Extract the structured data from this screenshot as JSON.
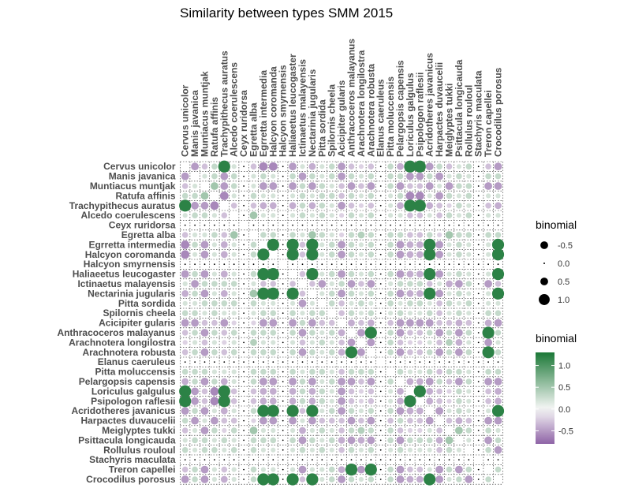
{
  "chart_data": {
    "type": "heatmap",
    "title": "Similarity between types SMM 2015",
    "variables": [
      "Cervus unicolor",
      "Manis javanica",
      "Muntiacus muntjak",
      "Ratufa affinis",
      "Trachypithecus auratus",
      "Alcedo coerulescens",
      "Ceyx ruridorsa",
      "Egretta alba",
      "Egrretta intermedia",
      "Halcyon coromanda",
      "Halcyon smyrnensis",
      "Haliaeetus leucogaster",
      "Ictinaetus malayensis",
      "Nectarinia jugularis",
      "Pitta sordida",
      "Spilornis cheela",
      "Acicipiter gularis",
      "Anthracoceros malayanus",
      "Arachnotera longilostra",
      "Arachnotera robusta",
      "Elanus caeruleus",
      "Pitta moluccensis",
      "Pelargopsis capensis",
      "Loriculus galgulus",
      "Psipologon raflesii",
      "Acridotheres javanicus",
      "Harpactes duvaucelii",
      "Meiglyptes tukki",
      "Psittacula longicauda",
      "Rollulus rouloul",
      "Stachyris maculata",
      "Treron capellei",
      "Crocodilus porosus"
    ],
    "matrix_note": "",
    "matrix": [
      [
        1,
        -0.5,
        -0.3,
        0.3,
        1.2,
        0.2,
        0,
        -0.3,
        -0.6,
        -0.6,
        0,
        -0.5,
        0.2,
        -0.4,
        0.2,
        0.3,
        -0.5,
        -0.3,
        -0.2,
        -0.3,
        0,
        0.3,
        -0.4,
        1.2,
        1.2,
        -0.5,
        0.3,
        -0.3,
        0.2,
        0.3,
        0,
        -0.3,
        -0.5
      ],
      [
        -0.5,
        1,
        0.2,
        0.3,
        -0.5,
        0.3,
        0,
        0.2,
        0.3,
        0.2,
        0,
        0.3,
        -0.5,
        0.3,
        0.2,
        0.3,
        -0.5,
        0.3,
        0.2,
        0.3,
        0,
        0.3,
        0.3,
        -0.5,
        -0.5,
        0.3,
        -0.5,
        0.2,
        0.3,
        0.2,
        0,
        0.3,
        0.3
      ],
      [
        -0.3,
        0.2,
        1,
        0.5,
        -0.5,
        0.3,
        0,
        0.2,
        -0.5,
        -0.5,
        0,
        -0.5,
        0.3,
        -0.5,
        0.3,
        0.2,
        -0.3,
        -0.5,
        -0.3,
        -0.5,
        0,
        0.3,
        -0.5,
        -0.3,
        -0.3,
        -0.5,
        0.2,
        -0.5,
        0.3,
        0.3,
        0,
        -0.5,
        -0.5
      ],
      [
        0.3,
        0.3,
        0.5,
        1,
        -0.6,
        0.2,
        0,
        0.3,
        0.2,
        0.2,
        0,
        0.2,
        0.3,
        0.2,
        0.3,
        0.3,
        -0.3,
        0.3,
        0.2,
        0.3,
        0,
        0.2,
        0.3,
        -0.6,
        -0.6,
        0.2,
        -0.5,
        0.3,
        0.2,
        0.3,
        0,
        0.2,
        0.2
      ],
      [
        1.2,
        -0.5,
        -0.5,
        -0.6,
        1,
        -0.3,
        0,
        -0.3,
        -0.4,
        -0.4,
        0,
        -0.4,
        0.3,
        -0.4,
        0.3,
        0.2,
        -0.5,
        -0.3,
        -0.2,
        -0.3,
        0,
        0.2,
        -0.4,
        1.2,
        1.2,
        -0.4,
        -0.3,
        -0.2,
        0.3,
        0.2,
        0,
        -0.3,
        -0.4
      ],
      [
        0.2,
        0.3,
        0.3,
        0.2,
        -0.3,
        1,
        0,
        0.5,
        0.2,
        0.2,
        0,
        0.2,
        0.3,
        0.2,
        0.3,
        0.2,
        -0.2,
        0.3,
        0.2,
        0.3,
        0,
        0.2,
        0.2,
        -0.3,
        -0.3,
        0.2,
        -0.3,
        0.3,
        0.2,
        0.3,
        0,
        0.2,
        0.2
      ],
      [
        0,
        0,
        0,
        0,
        0,
        0,
        1,
        0,
        0,
        0,
        0,
        0,
        0,
        0,
        0,
        0,
        0,
        0,
        0,
        0,
        0,
        0,
        0,
        0,
        0,
        0,
        0,
        0,
        0,
        0,
        0,
        0,
        0
      ],
      [
        -0.3,
        0.2,
        0.2,
        0.3,
        -0.3,
        0.5,
        0,
        1,
        0.3,
        0.3,
        0,
        0.3,
        0.2,
        0.5,
        0.3,
        0.2,
        -0.2,
        0.3,
        0.4,
        0.3,
        0,
        0.3,
        0.3,
        -0.3,
        -0.3,
        0.3,
        -0.2,
        0.5,
        0.3,
        0.3,
        0,
        0.3,
        0.3
      ],
      [
        -0.6,
        0.3,
        -0.5,
        0.2,
        -0.4,
        0.2,
        0,
        0.3,
        1,
        1.2,
        0,
        1.2,
        -0.3,
        1.2,
        0.2,
        0.3,
        -0.5,
        0.3,
        0.2,
        0.3,
        0,
        0.3,
        -0.5,
        -0.4,
        -0.4,
        1.2,
        -0.5,
        0.2,
        0.3,
        0.2,
        0,
        0.2,
        1.2
      ],
      [
        -0.6,
        0.2,
        -0.5,
        0.2,
        -0.4,
        0.2,
        0,
        0.3,
        1.2,
        1,
        0,
        1.2,
        -0.3,
        1.2,
        0.2,
        0.3,
        -0.5,
        0.3,
        0.2,
        0.3,
        0,
        0.3,
        -0.5,
        -0.4,
        -0.4,
        1.2,
        -0.5,
        0.2,
        0.3,
        0.2,
        0,
        0.2,
        1.2
      ],
      [
        0,
        0,
        0,
        0,
        0,
        0,
        0,
        0,
        0,
        0,
        1,
        0,
        0,
        0,
        0,
        0,
        0,
        0,
        0,
        0,
        0,
        0,
        0,
        0,
        0,
        0,
        0,
        0,
        0,
        0,
        0,
        0,
        0
      ],
      [
        -0.5,
        0.3,
        -0.5,
        0.2,
        -0.4,
        0.2,
        0,
        0.3,
        1.2,
        1.2,
        0,
        1,
        -0.3,
        1.2,
        0.2,
        0.3,
        -0.5,
        0.3,
        0.2,
        0.3,
        0,
        0.3,
        -0.5,
        -0.4,
        -0.4,
        1.2,
        -0.5,
        0.2,
        0.3,
        0.2,
        0,
        0.2,
        1.2
      ],
      [
        0.2,
        -0.5,
        0.3,
        0.3,
        0.3,
        0.3,
        0,
        0.2,
        -0.3,
        -0.3,
        0,
        -0.3,
        1,
        -0.3,
        -0.5,
        0.2,
        0.3,
        -0.5,
        -0.3,
        -0.5,
        0,
        0.2,
        0.3,
        0.3,
        0.3,
        -0.3,
        0.2,
        -0.4,
        -0.5,
        0.3,
        0,
        -0.5,
        -0.3
      ],
      [
        -0.4,
        0.3,
        -0.5,
        0.2,
        -0.4,
        0.2,
        0,
        0.5,
        1.2,
        1.2,
        0,
        1.2,
        -0.3,
        1,
        0.2,
        0.3,
        -0.5,
        0.3,
        0.2,
        0.3,
        0,
        0.3,
        -0.5,
        -0.4,
        -0.4,
        1.2,
        -0.5,
        0.2,
        0.3,
        0.2,
        0,
        0.2,
        1.2
      ],
      [
        0.2,
        0.2,
        0.3,
        0.3,
        0.3,
        0.3,
        0,
        0.3,
        0.2,
        0.2,
        0,
        0.2,
        -0.5,
        0.2,
        1,
        0.3,
        -0.3,
        0.2,
        0.3,
        0.2,
        0,
        0.3,
        0.2,
        0.3,
        0.3,
        0.2,
        -0.3,
        0.3,
        0.2,
        0.3,
        0,
        0.2,
        0.2
      ],
      [
        0.3,
        0.3,
        0.2,
        0.3,
        0.2,
        0.2,
        0,
        0.2,
        0.3,
        0.3,
        0,
        0.3,
        0.2,
        0.3,
        0.3,
        1,
        -0.3,
        0.3,
        0.2,
        0.3,
        0,
        0.2,
        0.3,
        0.2,
        0.2,
        0.3,
        -0.3,
        0.2,
        0.3,
        0.2,
        0,
        0.3,
        0.3
      ],
      [
        -0.5,
        -0.5,
        -0.3,
        -0.3,
        -0.5,
        -0.2,
        0,
        -0.2,
        -0.5,
        -0.5,
        0,
        -0.5,
        0.3,
        -0.5,
        -0.3,
        -0.3,
        1,
        -0.4,
        -0.3,
        -0.4,
        0,
        -0.3,
        -0.5,
        -0.5,
        -0.5,
        -0.5,
        -0.3,
        -0.3,
        -0.4,
        -0.3,
        0,
        -0.4,
        -0.5
      ],
      [
        -0.3,
        0.3,
        -0.5,
        0.3,
        -0.3,
        0.3,
        0,
        0.3,
        0.3,
        0.3,
        0,
        0.3,
        -0.5,
        0.3,
        0.2,
        0.3,
        -0.4,
        1,
        -0.5,
        1.2,
        0,
        0.3,
        -0.5,
        -0.3,
        -0.3,
        0.3,
        -0.5,
        0.3,
        -0.5,
        0.3,
        0,
        1.2,
        0.3
      ],
      [
        -0.2,
        0.2,
        -0.3,
        0.2,
        -0.2,
        0.2,
        0,
        0.4,
        0.2,
        0.2,
        0,
        0.2,
        -0.3,
        0.2,
        0.3,
        0.2,
        -0.3,
        -0.5,
        1,
        -0.5,
        0,
        0.3,
        -0.3,
        -0.2,
        -0.2,
        0.2,
        -0.3,
        0.4,
        -0.4,
        0.2,
        0,
        -0.5,
        0.2
      ],
      [
        -0.3,
        0.3,
        -0.5,
        0.3,
        -0.3,
        0.3,
        0,
        0.3,
        0.3,
        0.3,
        0,
        0.3,
        -0.5,
        0.3,
        0.2,
        0.3,
        -0.4,
        1.2,
        -0.5,
        1,
        0,
        0.3,
        -0.5,
        -0.3,
        -0.3,
        0.3,
        -0.5,
        0.3,
        -0.5,
        0.3,
        0,
        1.2,
        0.3
      ],
      [
        0,
        0,
        0,
        0,
        0,
        0,
        0,
        0,
        0,
        0,
        0,
        0,
        0,
        0,
        0,
        0,
        0,
        0,
        0,
        0,
        1,
        0,
        0,
        0,
        0,
        0,
        0,
        0,
        0,
        0,
        0,
        0,
        0
      ],
      [
        0.3,
        0.3,
        0.3,
        0.2,
        0.2,
        0.2,
        0,
        0.3,
        0.3,
        0.3,
        0,
        0.3,
        0.2,
        0.3,
        0.3,
        0.2,
        -0.3,
        0.3,
        0.3,
        0.3,
        0,
        1,
        0.3,
        0.2,
        0.2,
        0.3,
        -0.3,
        0.3,
        0.3,
        0.2,
        0,
        0.3,
        0.3
      ],
      [
        -0.4,
        0.3,
        -0.5,
        0.3,
        -0.4,
        0.2,
        0,
        0.3,
        -0.5,
        -0.5,
        0,
        -0.5,
        0.3,
        -0.5,
        0.2,
        0.3,
        -0.5,
        -0.5,
        -0.3,
        -0.5,
        0,
        0.3,
        1,
        -0.4,
        -0.4,
        -0.5,
        0.3,
        -0.3,
        -0.5,
        0.3,
        0,
        -0.5,
        -0.5
      ],
      [
        1.2,
        -0.5,
        -0.3,
        -0.6,
        1.2,
        -0.3,
        0,
        -0.3,
        -0.4,
        -0.4,
        0,
        -0.4,
        0.3,
        -0.4,
        0.3,
        0.2,
        -0.5,
        -0.3,
        -0.2,
        -0.3,
        0,
        0.2,
        -0.4,
        1,
        1.2,
        -0.4,
        -0.3,
        -0.2,
        0.3,
        0.2,
        0,
        -0.3,
        -0.4
      ],
      [
        1.2,
        -0.5,
        -0.3,
        -0.6,
        1.2,
        -0.3,
        0,
        -0.3,
        -0.4,
        -0.4,
        0,
        -0.4,
        0.3,
        -0.4,
        0.3,
        0.2,
        -0.5,
        -0.3,
        -0.2,
        -0.3,
        0,
        0.2,
        -0.4,
        1.2,
        1,
        -0.4,
        -0.3,
        -0.2,
        0.3,
        0.2,
        0,
        -0.3,
        -0.4
      ],
      [
        -0.5,
        0.3,
        -0.5,
        0.2,
        -0.4,
        0.2,
        0,
        0.3,
        1.2,
        1.2,
        0,
        1.2,
        -0.3,
        1.2,
        0.2,
        0.3,
        -0.5,
        0.3,
        0.2,
        0.3,
        0,
        0.3,
        -0.5,
        -0.4,
        -0.4,
        1,
        -0.5,
        0.2,
        0.3,
        0.2,
        0,
        0.2,
        1.2
      ],
      [
        0.3,
        -0.5,
        0.2,
        -0.5,
        -0.3,
        -0.3,
        0,
        -0.2,
        -0.5,
        -0.5,
        0,
        -0.5,
        0.2,
        -0.5,
        -0.3,
        -0.3,
        -0.3,
        -0.5,
        -0.3,
        -0.5,
        0,
        -0.3,
        0.3,
        -0.3,
        -0.3,
        -0.5,
        1,
        -0.3,
        -0.4,
        -0.3,
        0,
        -0.5,
        -0.5
      ],
      [
        -0.3,
        0.2,
        -0.5,
        0.3,
        -0.2,
        0.3,
        0,
        0.5,
        0.2,
        0.2,
        0,
        0.2,
        -0.4,
        0.2,
        0.3,
        0.2,
        -0.3,
        0.3,
        0.4,
        0.3,
        0,
        0.3,
        -0.3,
        -0.2,
        -0.2,
        0.2,
        -0.3,
        1,
        0.5,
        0.3,
        0,
        0.3,
        0.2
      ],
      [
        0.2,
        0.3,
        0.3,
        0.2,
        0.3,
        0.2,
        0,
        0.3,
        0.3,
        0.3,
        0,
        0.3,
        -0.5,
        0.3,
        0.2,
        0.3,
        -0.4,
        -0.5,
        -0.4,
        -0.5,
        0,
        0.3,
        -0.5,
        0.3,
        0.3,
        0.3,
        -0.4,
        0.5,
        1,
        0.2,
        0,
        -0.5,
        0.3
      ],
      [
        0.3,
        0.2,
        0.3,
        0.3,
        0.2,
        0.3,
        0,
        0.3,
        0.2,
        0.2,
        0,
        0.2,
        0.3,
        0.2,
        0.3,
        0.2,
        -0.3,
        0.3,
        0.2,
        0.3,
        0,
        0.2,
        0.3,
        0.2,
        0.2,
        0.2,
        -0.3,
        0.3,
        0.2,
        1,
        0,
        0.3,
        -0.5
      ],
      [
        0,
        0,
        0,
        0,
        0,
        0,
        0,
        0,
        0,
        0,
        0,
        0,
        0,
        0,
        0,
        0,
        0,
        0,
        0,
        0,
        0,
        0,
        0,
        0,
        0,
        0,
        0,
        0,
        0,
        0,
        1,
        0,
        0
      ],
      [
        -0.3,
        0.3,
        -0.5,
        0.2,
        -0.3,
        0.2,
        0,
        0.3,
        0.2,
        0.2,
        0,
        0.2,
        -0.5,
        0.2,
        0.2,
        0.3,
        -0.4,
        1.2,
        -0.5,
        1.2,
        0,
        0.3,
        -0.5,
        -0.3,
        -0.3,
        0.2,
        -0.5,
        0.3,
        -0.5,
        0.3,
        0,
        1,
        0.3
      ],
      [
        -0.5,
        0.3,
        -0.5,
        0.2,
        -0.4,
        0.2,
        0,
        0.3,
        1.2,
        1.2,
        0,
        1.2,
        -0.3,
        1.2,
        0.2,
        0.3,
        -0.5,
        0.3,
        0.2,
        0.3,
        0,
        0.3,
        -0.5,
        -0.4,
        -0.4,
        1.2,
        -0.5,
        0.2,
        0.3,
        -0.5,
        0,
        0.3,
        1
      ]
    ],
    "legend_size": {
      "title": "binomial",
      "values": [
        -0.5,
        0.0,
        0.5,
        1.0
      ],
      "labels": [
        "-0.5",
        "0.0",
        "0.5",
        "1.0"
      ]
    },
    "legend_color": {
      "title": "binomial",
      "values": [
        1.0,
        0.5,
        0.0,
        -0.5
      ],
      "labels": [
        "1.0",
        "0.5",
        "0.0",
        "-0.5"
      ],
      "range": [
        -0.8,
        1.3
      ]
    },
    "colors": {
      "low": "#8e63a6",
      "mid": "#f7f7f7",
      "high": "#1b7837"
    },
    "legend_placement": "right"
  }
}
